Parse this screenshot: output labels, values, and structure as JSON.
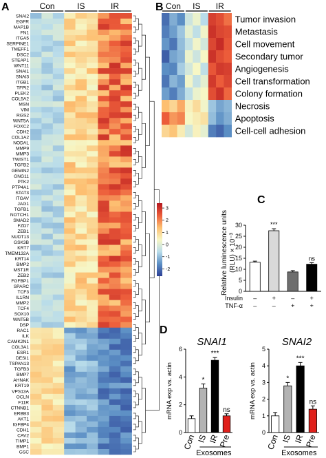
{
  "panels": {
    "a": "A",
    "b": "B",
    "c": "C",
    "d": "D"
  },
  "colorscale": {
    "ticks": [
      "3",
      "2",
      "1",
      "0",
      "-1",
      "-2"
    ],
    "stops": [
      "#2c3f95",
      "#5b8ec4",
      "#b9dcea",
      "#f7f7c5",
      "#fdbf71",
      "#ec5c3a",
      "#b5171e"
    ],
    "range": [
      -2.6,
      3.4
    ]
  },
  "chart_data": [
    {
      "type": "heatmap",
      "panel": "A",
      "columns": [
        "Con",
        "IS",
        "IR"
      ],
      "samples_per_group": 3,
      "rows": [
        "SNAI2",
        "EGFR",
        "MAP1B",
        "FN1",
        "ITGA5",
        "SERPINE1",
        "TMEFF1",
        "DSC2",
        "STEAP1",
        "WNT11",
        "SNAI1",
        "SNAI3",
        "ITGB1",
        "TFPI2",
        "PLEK2",
        "COL5A2",
        "MSN",
        "VIM",
        "RGS2",
        "WNT5A",
        "FOXC2",
        "CDH2",
        "COL1A2",
        "NODAL",
        "MMP9",
        "MMP3",
        "TWIST1",
        "TGFB2",
        "GEMIN2",
        "GNG11",
        "PTK2",
        "PTP4A1",
        "STAT3",
        "ITGAV",
        "JAG1",
        "TGFB1",
        "NOTCH1",
        "SMAD2",
        "FZD7",
        "ZEB1",
        "NUDT13",
        "GSK3B",
        "KRT7",
        "TMEM132A",
        "KRT14",
        "BMP2",
        "MST1R",
        "ZEB2",
        "FGFBP1",
        "SPARC",
        "TCF3",
        "IL1RN",
        "MMP2",
        "TCF4",
        "SOX10",
        "WNT5B",
        "DSP",
        "RAC1",
        "ILK",
        "CAMK2N1",
        "COL3A1",
        "ESR1",
        "DESI1",
        "TSPAN13",
        "TGFB3",
        "BMP7",
        "AHNAK",
        "KRT19",
        "VPS13A",
        "OCLN",
        "F11R",
        "CTNNB1",
        "ERBB3",
        "AKT1",
        "IGFBP4",
        "CDH1",
        "CAV2",
        "TIMP1",
        "BMP1",
        "GSC"
      ],
      "dendrogram": "right"
    },
    {
      "type": "heatmap",
      "panel": "B",
      "columns": [
        "Con",
        "IS",
        "IR"
      ],
      "samples_per_group": 3,
      "rows": [
        "Tumor invasion",
        "Metastasis",
        "Cell movement",
        "Secondary tumor",
        "Angiogenesis",
        "Cell transformation",
        "Colony formation",
        "Necrosis",
        "Apoptosis",
        "Cell-cell adhesion"
      ],
      "values": [
        [
          -2.0,
          -1.2,
          -1.6,
          -0.3,
          0.2,
          -0.6,
          2.8,
          2.6,
          2.2
        ],
        [
          -1.8,
          -1.4,
          -0.9,
          0.1,
          -0.5,
          0.3,
          3.0,
          2.7,
          2.6
        ],
        [
          -1.5,
          -1.9,
          -1.0,
          -0.4,
          0.3,
          -0.2,
          2.7,
          3.1,
          2.5
        ],
        [
          -2.2,
          -1.3,
          -1.1,
          0.2,
          -0.3,
          0.4,
          3.0,
          2.6,
          2.4
        ],
        [
          -1.6,
          -1.7,
          -0.8,
          -0.2,
          0.4,
          -0.5,
          2.5,
          2.9,
          2.8
        ],
        [
          -1.9,
          -1.1,
          -1.4,
          0.3,
          -0.4,
          0.1,
          2.9,
          2.4,
          2.7
        ],
        [
          -1.4,
          -1.8,
          -1.2,
          -0.5,
          0.2,
          0.4,
          2.6,
          3.0,
          2.3
        ],
        [
          1.4,
          1.0,
          1.6,
          0.5,
          0.9,
          0.3,
          -0.9,
          -1.3,
          -1.1
        ],
        [
          2.4,
          1.8,
          2.0,
          0.4,
          0.6,
          0.8,
          -1.0,
          -1.5,
          -1.2
        ],
        [
          1.0,
          1.3,
          0.6,
          -0.2,
          0.5,
          0.1,
          -1.8,
          -2.1,
          -1.6
        ]
      ]
    },
    {
      "type": "bar",
      "panel": "C",
      "ylabel_line1": "Relative luminescence units",
      "ylabel_line2": "(RLU) × 10⁻³",
      "ylim": [
        0,
        35
      ],
      "yticks": [
        0,
        5,
        10,
        15,
        20,
        25,
        30
      ],
      "row_labels": [
        "Insulin",
        "TNF-α"
      ],
      "conditions": [
        [
          "–",
          "–"
        ],
        [
          "+",
          "–"
        ],
        [
          "–",
          "+"
        ],
        [
          "+",
          "+"
        ]
      ],
      "values": [
        13.2,
        27.5,
        8.8,
        12.3
      ],
      "errors": [
        0.5,
        0.9,
        0.6,
        0.7
      ],
      "colors": [
        "#ffffff",
        "#d9d9d9",
        "#6e6e6e",
        "#000000"
      ],
      "significance": [
        "",
        "***",
        "",
        "ns"
      ]
    },
    {
      "type": "bar",
      "panel": "D",
      "title": "SNAI1",
      "ylabel": "mRNA exp vs. actin",
      "ylim": [
        0,
        6
      ],
      "yticks": [
        0,
        2,
        4,
        6
      ],
      "categories": [
        "Con",
        "IS",
        "IR",
        "Pre"
      ],
      "category_colors": [
        "#000000",
        "#000000",
        "#000000",
        "#e0201b"
      ],
      "values": [
        1.0,
        3.2,
        5.2,
        1.2
      ],
      "errors": [
        0.2,
        0.3,
        0.2,
        0.15
      ],
      "colors": [
        "#ffffff",
        "#b3b3b3",
        "#000000",
        "#e0201b"
      ],
      "significance": [
        "",
        "*",
        "***",
        "ns"
      ],
      "group_label": "Exosomes"
    },
    {
      "type": "bar",
      "panel": "D",
      "title": "SNAI2",
      "ylabel": "mRNA exp vs. actin",
      "ylim": [
        0,
        5
      ],
      "yticks": [
        0,
        1,
        2,
        3,
        4,
        5
      ],
      "categories": [
        "Con",
        "IS",
        "IR",
        "Pre"
      ],
      "category_colors": [
        "#000000",
        "#000000",
        "#000000",
        "#e0201b"
      ],
      "values": [
        1.0,
        2.8,
        4.0,
        1.4
      ],
      "errors": [
        0.2,
        0.2,
        0.2,
        0.2
      ],
      "colors": [
        "#ffffff",
        "#b3b3b3",
        "#000000",
        "#e0201b"
      ],
      "significance": [
        "",
        "*",
        "***",
        "ns"
      ],
      "group_label": "Exosomes"
    }
  ]
}
